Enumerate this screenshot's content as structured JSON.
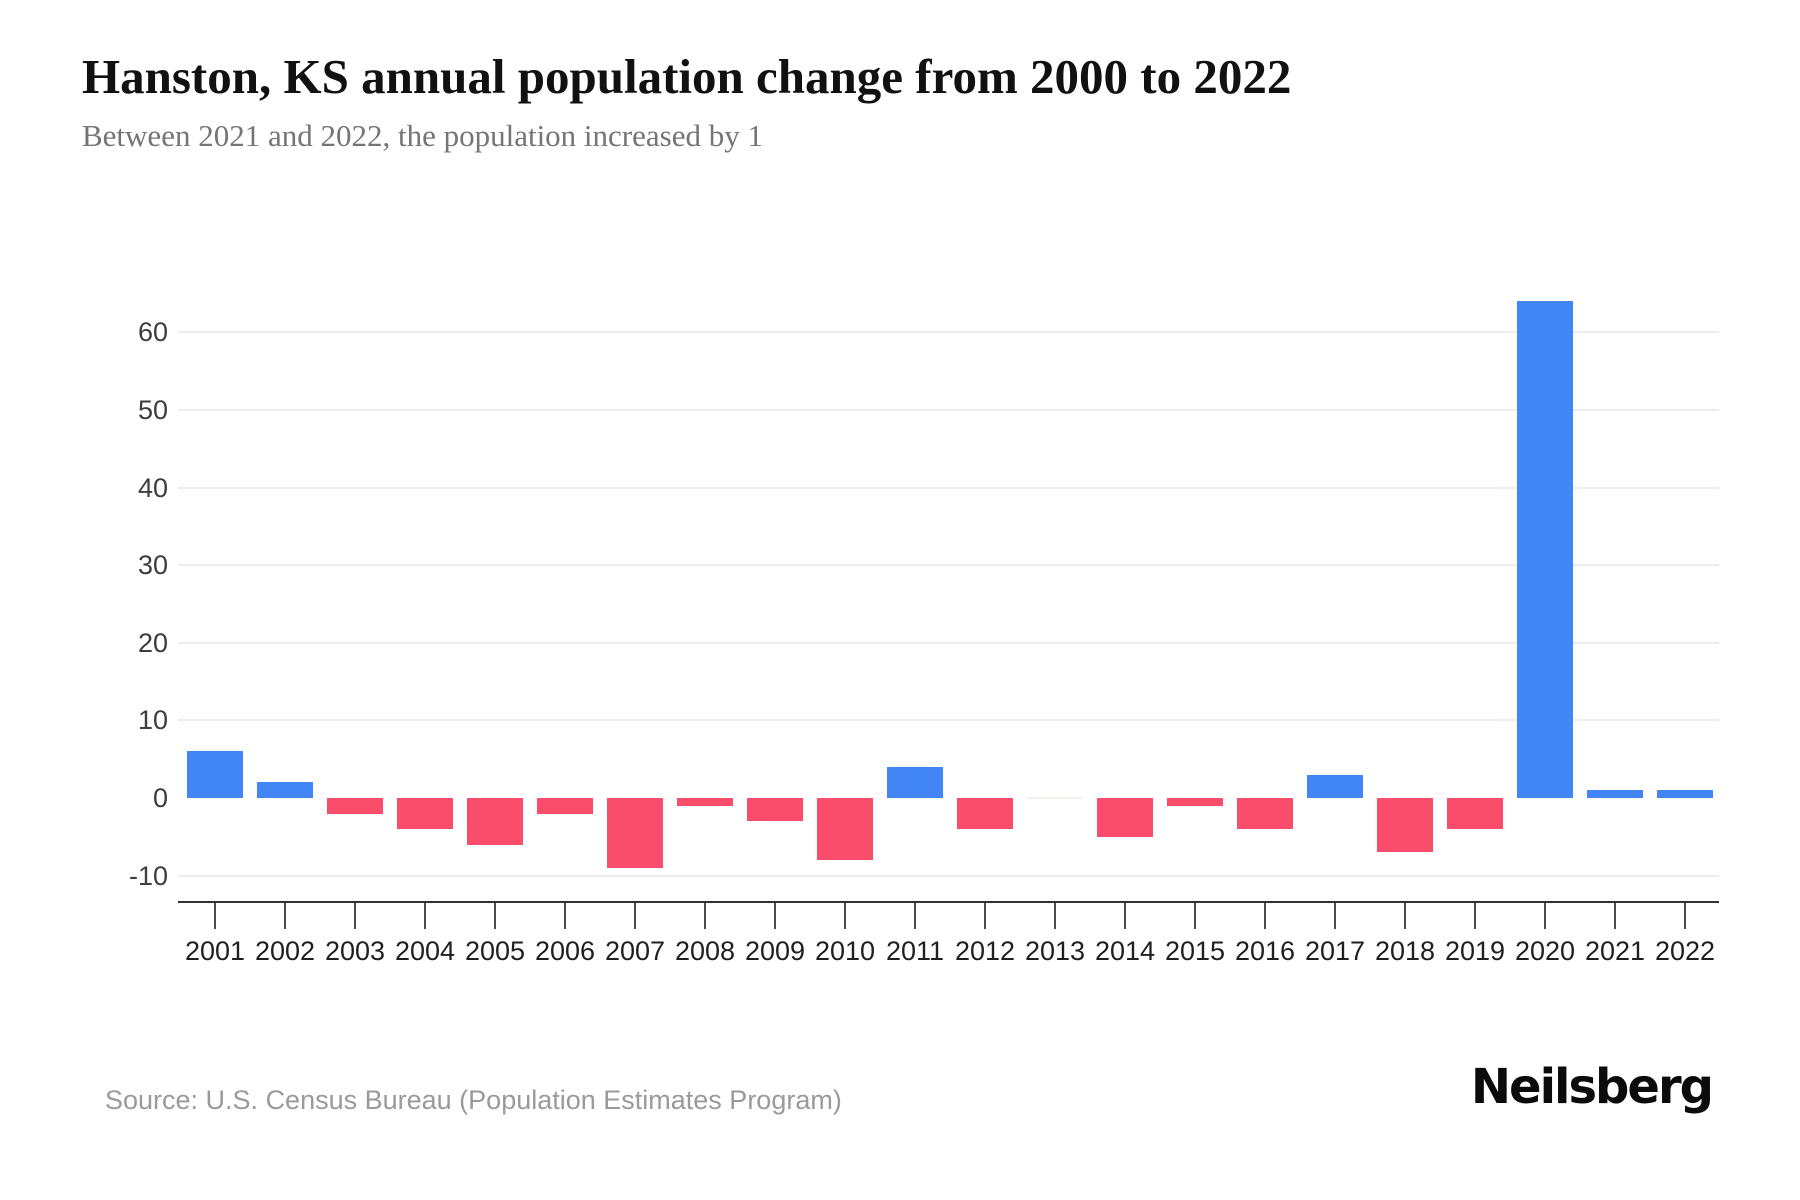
{
  "header": {
    "title": "Hanston, KS annual population change from 2000 to 2022",
    "subtitle": "Between 2021 and 2022, the population increased by 1"
  },
  "footer": {
    "source": "Source: U.S. Census Bureau (Population Estimates Program)",
    "brand": "Neilsberg"
  },
  "chart_data": {
    "type": "bar",
    "title": "Hanston, KS annual population change from 2000 to 2022",
    "xlabel": "",
    "ylabel": "",
    "categories": [
      2001,
      2002,
      2003,
      2004,
      2005,
      2006,
      2007,
      2008,
      2009,
      2010,
      2011,
      2012,
      2013,
      2014,
      2015,
      2016,
      2017,
      2018,
      2019,
      2020,
      2021,
      2022
    ],
    "values": [
      6,
      2,
      -2,
      -4,
      -6,
      -2,
      -9,
      -1,
      -3,
      -8,
      4,
      -4,
      0,
      -5,
      -1,
      -4,
      3,
      -7,
      -4,
      64,
      1,
      1
    ],
    "yticks": [
      60,
      50,
      40,
      30,
      20,
      10,
      0,
      -10
    ],
    "ylim": [
      -13.5,
      65
    ],
    "grid": "horizontal",
    "legend": false,
    "colors": {
      "positive": "#4285f4",
      "negative": "#f94d6b",
      "zero": "#f1f1ed"
    }
  }
}
